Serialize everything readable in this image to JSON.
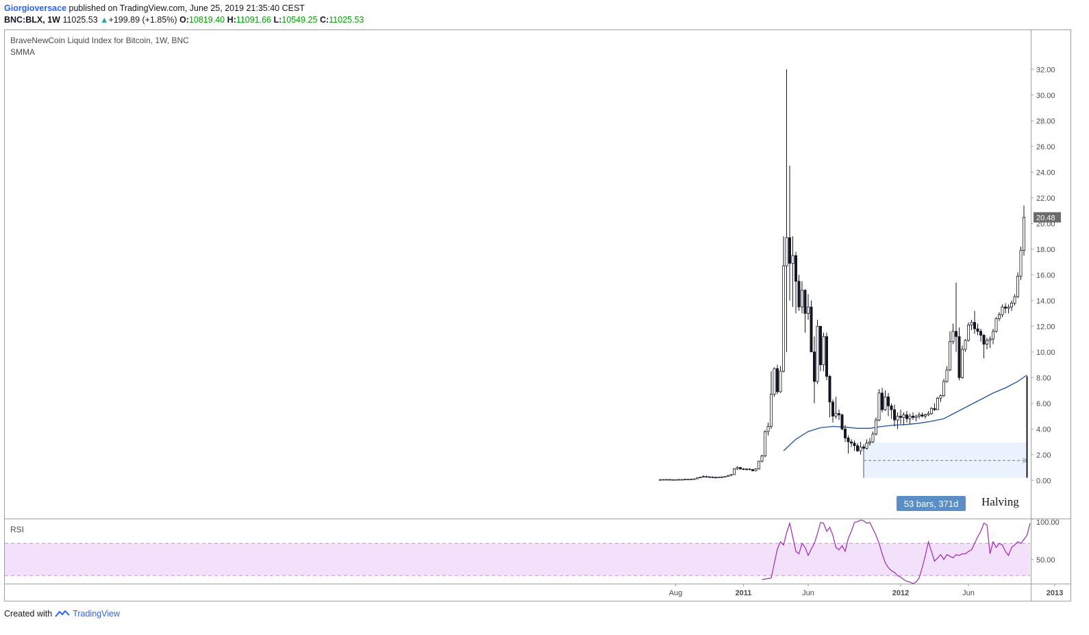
{
  "header": {
    "author": "Giorgioversace",
    "published_text": "published on TradingView.com, June 25, 2019 21:35:40 CEST",
    "symbol": "BNC:BLX, 1W",
    "last": "11025.53",
    "change": "+199.89 (+1.85%)",
    "o_label": "O:",
    "o": "10819.40",
    "h_label": "H:",
    "h": "11091.66",
    "l_label": "L:",
    "l": "10549.25",
    "c_label": "C:",
    "c": "11025.53"
  },
  "pane": {
    "title": "BraveNewCoin Liquid Index for Bitcoin, 1W, BNC",
    "indicator": "SMMA",
    "rsi_label": "RSI"
  },
  "annotations": {
    "range_label": "53 bars, 371d",
    "halving_label": "Halving",
    "price_marker": "20.48"
  },
  "footer": {
    "created_with": "Created with",
    "brand": "TradingView"
  },
  "colors": {
    "candle": "#131722",
    "smma": "#1e4fa0",
    "rsi": "#9c27b0",
    "rsi_band": "#f3e0fb",
    "range_fill": "#eaf3fd",
    "range_label_bg": "#5b8ec7",
    "price_marker_bg": "#6b6b6b"
  },
  "chart_data": {
    "type": "candlestick",
    "interval": "1W",
    "price_axis": {
      "ticks": [
        0,
        2,
        4,
        6,
        8,
        10,
        12,
        14,
        16,
        18,
        20,
        22,
        24,
        26,
        28,
        30,
        32
      ],
      "tick_labels": [
        "0.00",
        "2.00",
        "4.00",
        "6.00",
        "8.00",
        "10.00",
        "12.00",
        "14.00",
        "16.00",
        "18.00",
        "20.00",
        "22.00",
        "24.00",
        "26.00",
        "28.00",
        "30.00",
        "32.00"
      ],
      "range": [
        -1.8,
        34.2
      ]
    },
    "rsi_axis": {
      "ticks": [
        50,
        100
      ],
      "tick_labels": [
        "50.00",
        "100.00"
      ],
      "range": [
        20,
        100
      ],
      "band": [
        30,
        70
      ]
    },
    "time_axis": {
      "labels": [
        "Aug",
        "2011",
        "Jun",
        "2012",
        "Jun",
        "2013"
      ],
      "label_bar_index": [
        5,
        27,
        48,
        78,
        100,
        128
      ]
    },
    "candles": [
      {
        "o": 0.06,
        "h": 0.07,
        "l": 0.05,
        "c": 0.06
      },
      {
        "o": 0.06,
        "h": 0.07,
        "l": 0.05,
        "c": 0.07
      },
      {
        "o": 0.07,
        "h": 0.08,
        "l": 0.06,
        "c": 0.07
      },
      {
        "o": 0.07,
        "h": 0.08,
        "l": 0.06,
        "c": 0.06
      },
      {
        "o": 0.06,
        "h": 0.07,
        "l": 0.05,
        "c": 0.06
      },
      {
        "o": 0.06,
        "h": 0.07,
        "l": 0.05,
        "c": 0.06
      },
      {
        "o": 0.06,
        "h": 0.07,
        "l": 0.06,
        "c": 0.07
      },
      {
        "o": 0.07,
        "h": 0.08,
        "l": 0.06,
        "c": 0.07
      },
      {
        "o": 0.07,
        "h": 0.09,
        "l": 0.07,
        "c": 0.09
      },
      {
        "o": 0.09,
        "h": 0.11,
        "l": 0.08,
        "c": 0.1
      },
      {
        "o": 0.1,
        "h": 0.12,
        "l": 0.09,
        "c": 0.1
      },
      {
        "o": 0.1,
        "h": 0.14,
        "l": 0.1,
        "c": 0.12
      },
      {
        "o": 0.12,
        "h": 0.2,
        "l": 0.12,
        "c": 0.2
      },
      {
        "o": 0.2,
        "h": 0.29,
        "l": 0.18,
        "c": 0.26
      },
      {
        "o": 0.26,
        "h": 0.39,
        "l": 0.22,
        "c": 0.3
      },
      {
        "o": 0.3,
        "h": 0.36,
        "l": 0.24,
        "c": 0.28
      },
      {
        "o": 0.28,
        "h": 0.31,
        "l": 0.24,
        "c": 0.26
      },
      {
        "o": 0.26,
        "h": 0.3,
        "l": 0.23,
        "c": 0.24
      },
      {
        "o": 0.24,
        "h": 0.3,
        "l": 0.22,
        "c": 0.24
      },
      {
        "o": 0.24,
        "h": 0.29,
        "l": 0.22,
        "c": 0.26
      },
      {
        "o": 0.26,
        "h": 0.3,
        "l": 0.24,
        "c": 0.27
      },
      {
        "o": 0.27,
        "h": 0.3,
        "l": 0.25,
        "c": 0.3
      },
      {
        "o": 0.3,
        "h": 0.42,
        "l": 0.28,
        "c": 0.38
      },
      {
        "o": 0.38,
        "h": 0.48,
        "l": 0.35,
        "c": 0.45
      },
      {
        "o": 0.45,
        "h": 0.95,
        "l": 0.45,
        "c": 0.9
      },
      {
        "o": 0.9,
        "h": 1.1,
        "l": 0.8,
        "c": 1.0
      },
      {
        "o": 1.0,
        "h": 1.05,
        "l": 0.8,
        "c": 0.9
      },
      {
        "o": 0.9,
        "h": 0.95,
        "l": 0.8,
        "c": 0.86
      },
      {
        "o": 0.86,
        "h": 0.95,
        "l": 0.78,
        "c": 0.88
      },
      {
        "o": 0.88,
        "h": 0.95,
        "l": 0.8,
        "c": 0.84
      },
      {
        "o": 0.84,
        "h": 0.9,
        "l": 0.7,
        "c": 0.75
      },
      {
        "o": 0.75,
        "h": 0.95,
        "l": 0.7,
        "c": 0.89
      },
      {
        "o": 0.89,
        "h": 1.5,
        "l": 0.85,
        "c": 1.5
      },
      {
        "o": 1.5,
        "h": 2.0,
        "l": 1.4,
        "c": 1.9
      },
      {
        "o": 1.9,
        "h": 3.9,
        "l": 1.8,
        "c": 3.8
      },
      {
        "o": 3.8,
        "h": 4.5,
        "l": 3.5,
        "c": 4.2
      },
      {
        "o": 4.2,
        "h": 8.5,
        "l": 4.0,
        "c": 6.7
      },
      {
        "o": 6.7,
        "h": 8.8,
        "l": 6.5,
        "c": 8.7
      },
      {
        "o": 8.7,
        "h": 9.0,
        "l": 6.7,
        "c": 6.9
      },
      {
        "o": 6.9,
        "h": 8.9,
        "l": 6.8,
        "c": 8.5
      },
      {
        "o": 8.5,
        "h": 19.0,
        "l": 8.4,
        "c": 16.7
      },
      {
        "o": 16.7,
        "h": 32.0,
        "l": 10.0,
        "c": 18.9
      },
      {
        "o": 18.9,
        "h": 24.5,
        "l": 14.0,
        "c": 16.9
      },
      {
        "o": 16.9,
        "h": 19.0,
        "l": 13.5,
        "c": 17.5
      },
      {
        "o": 17.5,
        "h": 17.8,
        "l": 13.0,
        "c": 15.5
      },
      {
        "o": 15.5,
        "h": 16.0,
        "l": 13.2,
        "c": 13.5
      },
      {
        "o": 13.5,
        "h": 15.5,
        "l": 13.0,
        "c": 14.8
      },
      {
        "o": 14.8,
        "h": 14.9,
        "l": 11.5,
        "c": 13.0
      },
      {
        "o": 13.0,
        "h": 14.5,
        "l": 12.5,
        "c": 13.5
      },
      {
        "o": 13.5,
        "h": 14.0,
        "l": 10.0,
        "c": 10.0
      },
      {
        "o": 10.0,
        "h": 11.2,
        "l": 6.0,
        "c": 7.7
      },
      {
        "o": 7.7,
        "h": 12.5,
        "l": 7.5,
        "c": 12.0
      },
      {
        "o": 12.0,
        "h": 12.0,
        "l": 8.5,
        "c": 9.0
      },
      {
        "o": 9.0,
        "h": 11.5,
        "l": 8.5,
        "c": 11.2
      },
      {
        "o": 11.2,
        "h": 11.5,
        "l": 7.8,
        "c": 8.1
      },
      {
        "o": 8.1,
        "h": 8.2,
        "l": 4.9,
        "c": 6.1
      },
      {
        "o": 6.1,
        "h": 6.3,
        "l": 4.5,
        "c": 5.0
      },
      {
        "o": 5.0,
        "h": 6.5,
        "l": 4.8,
        "c": 5.2
      },
      {
        "o": 5.2,
        "h": 5.5,
        "l": 4.7,
        "c": 5.1
      },
      {
        "o": 5.1,
        "h": 5.2,
        "l": 3.9,
        "c": 4.0
      },
      {
        "o": 4.0,
        "h": 4.3,
        "l": 3.0,
        "c": 3.3
      },
      {
        "o": 3.3,
        "h": 3.5,
        "l": 2.1,
        "c": 3.0
      },
      {
        "o": 3.0,
        "h": 3.2,
        "l": 2.6,
        "c": 2.9
      },
      {
        "o": 2.9,
        "h": 3.1,
        "l": 2.3,
        "c": 2.7
      },
      {
        "o": 2.7,
        "h": 2.9,
        "l": 2.2,
        "c": 2.3
      },
      {
        "o": 2.3,
        "h": 3.0,
        "l": 2.0,
        "c": 2.6
      },
      {
        "o": 2.6,
        "h": 2.8,
        "l": 2.3,
        "c": 2.5
      },
      {
        "o": 2.5,
        "h": 3.2,
        "l": 2.4,
        "c": 2.9
      },
      {
        "o": 2.9,
        "h": 3.3,
        "l": 2.7,
        "c": 3.0
      },
      {
        "o": 3.0,
        "h": 3.8,
        "l": 2.9,
        "c": 3.6
      },
      {
        "o": 3.6,
        "h": 4.9,
        "l": 3.5,
        "c": 4.7
      },
      {
        "o": 4.7,
        "h": 7.1,
        "l": 4.6,
        "c": 6.8
      },
      {
        "o": 6.8,
        "h": 7.2,
        "l": 5.3,
        "c": 5.5
      },
      {
        "o": 5.5,
        "h": 7.0,
        "l": 5.4,
        "c": 6.5
      },
      {
        "o": 6.5,
        "h": 6.8,
        "l": 5.0,
        "c": 5.8
      },
      {
        "o": 5.8,
        "h": 6.0,
        "l": 4.8,
        "c": 5.5
      },
      {
        "o": 5.5,
        "h": 5.9,
        "l": 4.2,
        "c": 4.7
      },
      {
        "o": 4.7,
        "h": 5.3,
        "l": 4.0,
        "c": 5.0
      },
      {
        "o": 5.0,
        "h": 5.5,
        "l": 4.4,
        "c": 4.9
      },
      {
        "o": 4.9,
        "h": 5.3,
        "l": 4.3,
        "c": 5.1
      },
      {
        "o": 5.1,
        "h": 5.4,
        "l": 4.5,
        "c": 4.8
      },
      {
        "o": 4.8,
        "h": 5.2,
        "l": 4.4,
        "c": 5.0
      },
      {
        "o": 5.0,
        "h": 5.3,
        "l": 4.7,
        "c": 4.9
      },
      {
        "o": 4.9,
        "h": 5.1,
        "l": 4.6,
        "c": 5.0
      },
      {
        "o": 5.0,
        "h": 5.3,
        "l": 4.8,
        "c": 5.1
      },
      {
        "o": 5.1,
        "h": 5.3,
        "l": 4.9,
        "c": 5.0
      },
      {
        "o": 5.0,
        "h": 5.2,
        "l": 4.8,
        "c": 5.1
      },
      {
        "o": 5.1,
        "h": 5.4,
        "l": 5.0,
        "c": 5.2
      },
      {
        "o": 5.2,
        "h": 5.7,
        "l": 5.1,
        "c": 5.6
      },
      {
        "o": 5.6,
        "h": 6.0,
        "l": 5.4,
        "c": 5.5
      },
      {
        "o": 5.5,
        "h": 6.5,
        "l": 5.5,
        "c": 6.4
      },
      {
        "o": 6.4,
        "h": 6.7,
        "l": 6.1,
        "c": 6.6
      },
      {
        "o": 6.6,
        "h": 7.9,
        "l": 6.5,
        "c": 7.7
      },
      {
        "o": 7.7,
        "h": 8.9,
        "l": 7.6,
        "c": 8.6
      },
      {
        "o": 8.6,
        "h": 11.6,
        "l": 8.5,
        "c": 10.8
      },
      {
        "o": 10.8,
        "h": 12.2,
        "l": 10.6,
        "c": 11.6
      },
      {
        "o": 11.6,
        "h": 15.4,
        "l": 10.0,
        "c": 11.2
      },
      {
        "o": 11.2,
        "h": 11.9,
        "l": 7.8,
        "c": 8.0
      },
      {
        "o": 8.0,
        "h": 10.5,
        "l": 7.9,
        "c": 10.2
      },
      {
        "o": 10.2,
        "h": 11.0,
        "l": 10.0,
        "c": 10.9
      },
      {
        "o": 10.9,
        "h": 12.3,
        "l": 10.8,
        "c": 12.1
      },
      {
        "o": 12.1,
        "h": 12.5,
        "l": 11.7,
        "c": 12.3
      },
      {
        "o": 12.3,
        "h": 13.2,
        "l": 11.4,
        "c": 11.8
      },
      {
        "o": 11.8,
        "h": 12.2,
        "l": 11.3,
        "c": 11.6
      },
      {
        "o": 11.6,
        "h": 11.8,
        "l": 10.8,
        "c": 11.3
      },
      {
        "o": 11.3,
        "h": 11.4,
        "l": 9.5,
        "c": 10.6
      },
      {
        "o": 10.6,
        "h": 11.1,
        "l": 10.2,
        "c": 10.9
      },
      {
        "o": 10.9,
        "h": 11.2,
        "l": 10.3,
        "c": 11.0
      },
      {
        "o": 11.0,
        "h": 11.8,
        "l": 10.6,
        "c": 11.6
      },
      {
        "o": 11.6,
        "h": 12.7,
        "l": 11.5,
        "c": 12.6
      },
      {
        "o": 12.6,
        "h": 13.1,
        "l": 12.4,
        "c": 12.9
      },
      {
        "o": 12.9,
        "h": 13.7,
        "l": 12.7,
        "c": 13.5
      },
      {
        "o": 13.5,
        "h": 13.8,
        "l": 13.0,
        "c": 13.4
      },
      {
        "o": 13.4,
        "h": 13.7,
        "l": 13.0,
        "c": 13.5
      },
      {
        "o": 13.5,
        "h": 14.0,
        "l": 13.2,
        "c": 13.8
      },
      {
        "o": 13.8,
        "h": 14.5,
        "l": 13.6,
        "c": 14.3
      },
      {
        "o": 14.3,
        "h": 16.2,
        "l": 14.2,
        "c": 15.9
      },
      {
        "o": 15.9,
        "h": 18.2,
        "l": 15.6,
        "c": 17.9
      },
      {
        "o": 17.9,
        "h": 21.4,
        "l": 17.5,
        "c": 20.48
      }
    ],
    "smma": [
      [
        40,
        2.3
      ],
      [
        44,
        3.2
      ],
      [
        48,
        3.8
      ],
      [
        52,
        4.1
      ],
      [
        56,
        4.2
      ],
      [
        60,
        4.15
      ],
      [
        64,
        4.05
      ],
      [
        68,
        4.05
      ],
      [
        72,
        4.2
      ],
      [
        76,
        4.3
      ],
      [
        80,
        4.35
      ],
      [
        84,
        4.45
      ],
      [
        88,
        4.6
      ],
      [
        92,
        4.8
      ],
      [
        96,
        5.3
      ],
      [
        100,
        5.8
      ],
      [
        104,
        6.3
      ],
      [
        108,
        6.8
      ],
      [
        112,
        7.2
      ],
      [
        116,
        7.7
      ],
      [
        119,
        8.2
      ]
    ],
    "rsi": [
      [
        0,
        25
      ],
      [
        3,
        27
      ],
      [
        5,
        63
      ],
      [
        6,
        72
      ],
      [
        7,
        68
      ],
      [
        8,
        83
      ],
      [
        9,
        95
      ],
      [
        10,
        78
      ],
      [
        11,
        60
      ],
      [
        12,
        57
      ],
      [
        13,
        70
      ],
      [
        14,
        65
      ],
      [
        15,
        55
      ],
      [
        16,
        63
      ],
      [
        17,
        70
      ],
      [
        18,
        82
      ],
      [
        19,
        96
      ],
      [
        20,
        95
      ],
      [
        21,
        85
      ],
      [
        22,
        90
      ],
      [
        23,
        80
      ],
      [
        24,
        65
      ],
      [
        25,
        62
      ],
      [
        26,
        67
      ],
      [
        27,
        60
      ],
      [
        28,
        76
      ],
      [
        29,
        85
      ],
      [
        30,
        96
      ],
      [
        31,
        97
      ],
      [
        32,
        99
      ],
      [
        33,
        98
      ],
      [
        34,
        95
      ],
      [
        35,
        96
      ],
      [
        36,
        88
      ],
      [
        37,
        80
      ],
      [
        38,
        70
      ],
      [
        39,
        57
      ],
      [
        40,
        46
      ],
      [
        41,
        40
      ],
      [
        42,
        36
      ],
      [
        43,
        34
      ],
      [
        44,
        30
      ],
      [
        45,
        28
      ],
      [
        46,
        25
      ],
      [
        47,
        23
      ],
      [
        48,
        22
      ],
      [
        49,
        20
      ],
      [
        50,
        22
      ],
      [
        51,
        27
      ],
      [
        52,
        40
      ],
      [
        53,
        55
      ],
      [
        54,
        72
      ],
      [
        55,
        60
      ],
      [
        56,
        48
      ],
      [
        57,
        52
      ],
      [
        58,
        56
      ],
      [
        59,
        50
      ],
      [
        60,
        56
      ],
      [
        61,
        54
      ],
      [
        62,
        52
      ],
      [
        63,
        56
      ],
      [
        64,
        55
      ],
      [
        65,
        57
      ],
      [
        66,
        57
      ],
      [
        67,
        60
      ],
      [
        68,
        62
      ],
      [
        69,
        70
      ],
      [
        70,
        78
      ],
      [
        71,
        85
      ],
      [
        72,
        95
      ],
      [
        73,
        93
      ],
      [
        74,
        57
      ],
      [
        75,
        72
      ],
      [
        76,
        65
      ],
      [
        77,
        70
      ],
      [
        78,
        68
      ],
      [
        79,
        60
      ],
      [
        80,
        55
      ],
      [
        81,
        65
      ],
      [
        82,
        68
      ],
      [
        83,
        72
      ],
      [
        84,
        70
      ],
      [
        85,
        75
      ],
      [
        86,
        80
      ],
      [
        87,
        95
      ]
    ],
    "range_measure": {
      "from_bar": 66,
      "to_bar": 119,
      "top": 2.95,
      "bottom": 0.2,
      "arrow_at": 1.55
    },
    "halving_line": {
      "bar": 119,
      "top": 8.1,
      "bottom": 0.2
    }
  }
}
